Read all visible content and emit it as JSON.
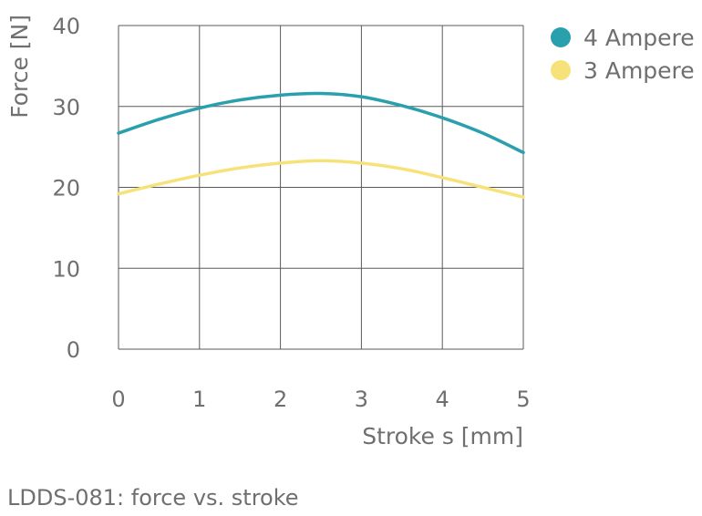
{
  "chart_data": {
    "type": "line",
    "xlabel": "Stroke s [mm]",
    "ylabel": "Force [N]",
    "xlim": [
      0,
      5
    ],
    "ylim": [
      0,
      40
    ],
    "x_ticks": [
      "0",
      "1",
      "2",
      "3",
      "4",
      "5"
    ],
    "y_ticks": [
      "0",
      "10",
      "20",
      "30",
      "40"
    ],
    "grid": true,
    "legend_position": "right",
    "series": [
      {
        "name": "4 Ampere",
        "color": "#2a9fae",
        "x": [
          0,
          0.5,
          1,
          1.5,
          2,
          2.5,
          3,
          3.5,
          4,
          4.5,
          5
        ],
        "y": [
          26.7,
          28.4,
          29.8,
          30.8,
          31.4,
          31.6,
          31.2,
          30.1,
          28.6,
          26.7,
          24.3
        ]
      },
      {
        "name": "3 Ampere",
        "color": "#f7e27a",
        "x": [
          0,
          0.5,
          1,
          1.5,
          2,
          2.5,
          3,
          3.5,
          4,
          4.5,
          5
        ],
        "y": [
          19.2,
          20.4,
          21.5,
          22.4,
          23.0,
          23.3,
          23.0,
          22.3,
          21.2,
          20.0,
          18.8
        ]
      }
    ]
  },
  "caption": "LDDS-081: force vs. stroke"
}
